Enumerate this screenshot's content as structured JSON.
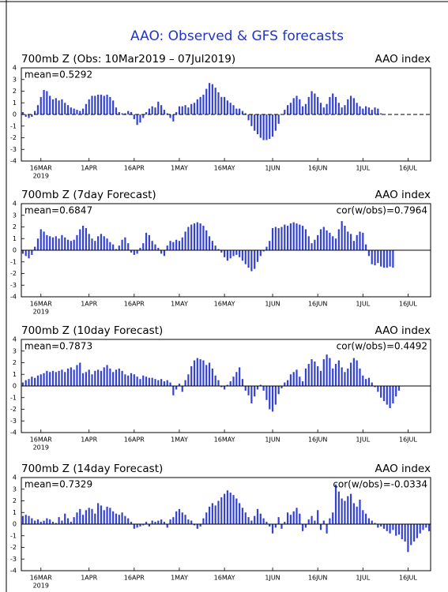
{
  "title": "AAO: Observed & GFS forecasts",
  "chart_data": [
    {
      "type": "bar",
      "title": "700mb Z (Obs: 10Mar2019 – 07Jul2019)",
      "index_label": "AAO index",
      "mean_label": "mean=0.5292",
      "year_label": "2019",
      "color": "#3342d0",
      "categories": [
        null,
        null,
        null,
        null,
        null,
        null,
        "16MAR",
        null,
        null,
        null,
        null,
        null,
        null,
        null,
        null,
        null,
        null,
        null,
        null,
        null,
        null,
        null,
        "1APR",
        null,
        null,
        null,
        null,
        null,
        null,
        null,
        null,
        null,
        null,
        null,
        null,
        null,
        null,
        "16APR",
        null,
        null,
        null,
        null,
        null,
        null,
        null,
        null,
        null,
        null,
        null,
        null,
        null,
        null,
        "1MAY",
        null,
        null,
        null,
        null,
        null,
        null,
        null,
        null,
        null,
        null,
        null,
        null,
        null,
        null,
        "16MAY",
        null,
        null,
        null,
        null,
        null,
        null,
        null,
        null,
        null,
        null,
        null,
        null,
        null,
        null,
        null,
        "1JUN",
        null,
        null,
        null,
        null,
        null,
        null,
        null,
        null,
        null,
        null,
        null,
        null,
        null,
        null,
        "16JUN",
        null,
        null,
        null,
        null,
        null,
        null,
        null,
        null,
        null,
        null,
        null,
        null,
        null,
        null,
        "1JUL",
        null,
        null,
        null,
        null,
        null,
        null,
        null,
        null,
        null,
        null,
        null,
        null,
        null,
        null,
        "16JUL",
        null,
        null,
        null,
        null,
        null,
        null,
        null
      ],
      "values": [
        0.2,
        -0.2,
        -0.3,
        -0.2,
        0.3,
        0.8,
        1.5,
        2.1,
        2.0,
        1.6,
        1.3,
        1.4,
        1.2,
        1.3,
        1.0,
        0.8,
        0.6,
        0.5,
        0.4,
        0.3,
        0.5,
        0.9,
        1.3,
        1.6,
        1.6,
        1.7,
        1.7,
        1.6,
        1.7,
        1.5,
        1.2,
        0.6,
        0.2,
        0.1,
        0.1,
        0.3,
        0.2,
        -0.4,
        -0.9,
        -0.7,
        -0.3,
        0.2,
        0.5,
        0.7,
        0.6,
        1.1,
        0.8,
        0.4,
        0.1,
        -0.3,
        -0.6,
        0.2,
        0.7,
        0.7,
        0.8,
        0.6,
        0.9,
        1.0,
        1.3,
        1.5,
        1.7,
        2.2,
        2.7,
        2.6,
        2.3,
        1.9,
        1.5,
        1.5,
        1.2,
        1.0,
        0.8,
        0.5,
        0.5,
        0.3,
        0.1,
        -0.5,
        -1.0,
        -1.4,
        -1.7,
        -2.0,
        -2.2,
        -2.2,
        -2.1,
        -1.9,
        -1.4,
        -0.8,
        0.0,
        0.4,
        0.8,
        1.0,
        1.4,
        1.6,
        1.3,
        0.7,
        0.9,
        1.5,
        2.0,
        1.8,
        1.5,
        1.0,
        0.6,
        0.9,
        1.5,
        1.8,
        1.5,
        1.0,
        0.6,
        0.8,
        1.3,
        1.6,
        1.4,
        1.0,
        0.7,
        0.5,
        0.7,
        0.6,
        0.4,
        0.6,
        0.5,
        0.1,
        null,
        null,
        null,
        null,
        null,
        null,
        null,
        null,
        null,
        null,
        null,
        null,
        null,
        null,
        null,
        null
      ],
      "ylim": [
        -4,
        4
      ],
      "yticks": [
        -4,
        -3,
        -2,
        -1,
        0,
        1,
        2,
        3,
        4
      ]
    },
    {
      "type": "bar",
      "title": "700mb Z (7day Forecast)",
      "index_label": "AAO index",
      "mean_label": "mean=0.6847",
      "cor_label": "cor(w/obs)=0.7964",
      "year_label": "2019",
      "color": "#3342d0",
      "categories": [
        null,
        null,
        null,
        null,
        null,
        null,
        "16MAR",
        null,
        null,
        null,
        null,
        null,
        null,
        null,
        null,
        null,
        null,
        null,
        null,
        null,
        null,
        null,
        "1APR",
        null,
        null,
        null,
        null,
        null,
        null,
        null,
        null,
        null,
        null,
        null,
        null,
        null,
        null,
        "16APR",
        null,
        null,
        null,
        null,
        null,
        null,
        null,
        null,
        null,
        null,
        null,
        null,
        null,
        null,
        "1MAY",
        null,
        null,
        null,
        null,
        null,
        null,
        null,
        null,
        null,
        null,
        null,
        null,
        null,
        null,
        "16MAY",
        null,
        null,
        null,
        null,
        null,
        null,
        null,
        null,
        null,
        null,
        null,
        null,
        null,
        null,
        null,
        "1JUN",
        null,
        null,
        null,
        null,
        null,
        null,
        null,
        null,
        null,
        null,
        null,
        null,
        null,
        null,
        "16JUN",
        null,
        null,
        null,
        null,
        null,
        null,
        null,
        null,
        null,
        null,
        null,
        null,
        null,
        null,
        "1JUL",
        null,
        null,
        null,
        null,
        null,
        null,
        null,
        null,
        null,
        null,
        null,
        null,
        null,
        null,
        "16JUL",
        null,
        null,
        null,
        null,
        null,
        null,
        null
      ],
      "values": [
        -0.3,
        -0.5,
        -0.7,
        -0.4,
        0.3,
        1.0,
        1.8,
        1.6,
        1.3,
        1.2,
        1.1,
        1.2,
        1.0,
        1.3,
        1.1,
        0.9,
        0.8,
        0.9,
        1.3,
        1.8,
        2.1,
        1.9,
        1.4,
        1.0,
        0.8,
        1.2,
        1.4,
        1.2,
        1.0,
        0.7,
        0.5,
        0.1,
        0.4,
        0.9,
        1.1,
        0.6,
        -0.2,
        -0.4,
        -0.3,
        0.2,
        0.6,
        1.5,
        1.3,
        0.8,
        0.5,
        0.2,
        -0.3,
        -0.5,
        0.4,
        0.8,
        0.7,
        0.9,
        0.8,
        1.1,
        1.6,
        2.0,
        2.2,
        2.3,
        2.4,
        2.3,
        2.1,
        1.7,
        1.2,
        0.8,
        0.4,
        0.1,
        -0.2,
        -0.6,
        -0.9,
        -0.7,
        -0.5,
        -0.4,
        -0.6,
        -0.9,
        -1.2,
        -1.5,
        -1.8,
        -1.6,
        -1.0,
        -0.5,
        -0.1,
        0.3,
        0.8,
        1.9,
        2.0,
        1.9,
        2.0,
        2.2,
        2.1,
        2.3,
        2.4,
        2.3,
        2.2,
        2.1,
        1.8,
        1.2,
        0.6,
        0.9,
        1.3,
        1.8,
        2.0,
        1.7,
        1.5,
        1.2,
        1.0,
        1.8,
        2.5,
        2.1,
        1.6,
        1.4,
        0.8,
        1.3,
        1.6,
        1.5,
        0.5,
        -0.5,
        -1.2,
        -1.3,
        -1.1,
        -1.4,
        -1.5,
        -1.5,
        -1.4,
        -1.5,
        null,
        null,
        null,
        null,
        null,
        null,
        null,
        null,
        null,
        null,
        null,
        null
      ],
      "ylim": [
        -4,
        4
      ],
      "yticks": [
        -4,
        -3,
        -2,
        -1,
        0,
        1,
        2,
        3,
        4
      ]
    },
    {
      "type": "bar",
      "title": "700mb Z (10day Forecast)",
      "index_label": "AAO index",
      "mean_label": "mean=0.7873",
      "cor_label": "cor(w/obs)=0.4492",
      "year_label": "2019",
      "color": "#3342d0",
      "categories": [
        null,
        null,
        null,
        null,
        null,
        null,
        "16MAR",
        null,
        null,
        null,
        null,
        null,
        null,
        null,
        null,
        null,
        null,
        null,
        null,
        null,
        null,
        null,
        "1APR",
        null,
        null,
        null,
        null,
        null,
        null,
        null,
        null,
        null,
        null,
        null,
        null,
        null,
        null,
        "16APR",
        null,
        null,
        null,
        null,
        null,
        null,
        null,
        null,
        null,
        null,
        null,
        null,
        null,
        null,
        "1MAY",
        null,
        null,
        null,
        null,
        null,
        null,
        null,
        null,
        null,
        null,
        null,
        null,
        null,
        null,
        "16MAY",
        null,
        null,
        null,
        null,
        null,
        null,
        null,
        null,
        null,
        null,
        null,
        null,
        null,
        null,
        null,
        "1JUN",
        null,
        null,
        null,
        null,
        null,
        null,
        null,
        null,
        null,
        null,
        null,
        null,
        null,
        null,
        "16JUN",
        null,
        null,
        null,
        null,
        null,
        null,
        null,
        null,
        null,
        null,
        null,
        null,
        null,
        null,
        "1JUL",
        null,
        null,
        null,
        null,
        null,
        null,
        null,
        null,
        null,
        null,
        null,
        null,
        null,
        null,
        "16JUL",
        null,
        null,
        null,
        null,
        null,
        null,
        null
      ],
      "values": [
        0.3,
        0.5,
        0.6,
        0.8,
        0.7,
        0.9,
        1.0,
        1.1,
        1.3,
        1.2,
        1.3,
        1.2,
        1.3,
        1.4,
        1.2,
        1.5,
        1.6,
        1.4,
        1.8,
        2.0,
        1.1,
        1.2,
        1.4,
        1.0,
        1.3,
        1.4,
        1.3,
        1.6,
        1.8,
        1.5,
        1.2,
        1.4,
        1.5,
        1.3,
        1.0,
        0.9,
        1.1,
        1.0,
        0.8,
        0.6,
        0.9,
        0.8,
        0.7,
        0.7,
        0.6,
        0.5,
        0.6,
        0.4,
        0.5,
        0.3,
        -0.8,
        -0.3,
        0.2,
        -0.5,
        0.5,
        1.0,
        1.7,
        2.2,
        2.4,
        2.3,
        2.2,
        1.8,
        2.0,
        1.5,
        0.9,
        0.5,
        -0.1,
        -0.3,
        0.1,
        0.4,
        0.8,
        1.2,
        1.6,
        0.6,
        -0.4,
        -0.8,
        -1.5,
        -0.9,
        -0.3,
        0.1,
        -0.4,
        -1.2,
        -2.0,
        -2.2,
        -1.6,
        -0.7,
        -0.2,
        0.3,
        0.5,
        1.0,
        1.2,
        1.4,
        0.8,
        0.4,
        1.5,
        1.9,
        2.3,
        2.1,
        1.7,
        1.3,
        2.3,
        2.7,
        2.4,
        1.5,
        1.9,
        2.2,
        1.6,
        1.2,
        1.5,
        2.0,
        2.4,
        2.2,
        1.5,
        0.9,
        0.6,
        0.7,
        0.3,
        -0.1,
        -0.5,
        -1.0,
        -1.3,
        -1.6,
        -1.9,
        -1.5,
        -0.9,
        -0.4,
        null,
        null,
        null,
        null,
        null,
        null,
        null,
        null,
        null,
        null
      ],
      "ylim": [
        -4,
        4
      ],
      "yticks": [
        -4,
        -3,
        -2,
        -1,
        0,
        1,
        2,
        3,
        4
      ]
    },
    {
      "type": "bar",
      "title": "700mb Z (14day Forecast)",
      "index_label": "AAO index",
      "mean_label": "mean=0.7329",
      "cor_label": "cor(w/obs)=-0.0334",
      "year_label": "2019",
      "color": "#3342d0",
      "categories": [
        null,
        null,
        null,
        null,
        null,
        null,
        "16MAR",
        null,
        null,
        null,
        null,
        null,
        null,
        null,
        null,
        null,
        null,
        null,
        null,
        null,
        null,
        null,
        "1APR",
        null,
        null,
        null,
        null,
        null,
        null,
        null,
        null,
        null,
        null,
        null,
        null,
        null,
        null,
        "16APR",
        null,
        null,
        null,
        null,
        null,
        null,
        null,
        null,
        null,
        null,
        null,
        null,
        null,
        null,
        "1MAY",
        null,
        null,
        null,
        null,
        null,
        null,
        null,
        null,
        null,
        null,
        null,
        null,
        null,
        null,
        "16MAY",
        null,
        null,
        null,
        null,
        null,
        null,
        null,
        null,
        null,
        null,
        null,
        null,
        null,
        null,
        null,
        "1JUN",
        null,
        null,
        null,
        null,
        null,
        null,
        null,
        null,
        null,
        null,
        null,
        null,
        null,
        null,
        "16JUN",
        null,
        null,
        null,
        null,
        null,
        null,
        null,
        null,
        null,
        null,
        null,
        null,
        null,
        null,
        "1JUL",
        null,
        null,
        null,
        null,
        null,
        null,
        null,
        null,
        null,
        null,
        null,
        null,
        null,
        null,
        "16JUL",
        null,
        null,
        null,
        null,
        null,
        null,
        null
      ],
      "values": [
        0.7,
        0.8,
        0.7,
        0.5,
        0.3,
        0.4,
        0.2,
        0.3,
        0.5,
        0.4,
        0.2,
        0.1,
        0.6,
        0.3,
        0.9,
        0.5,
        0.2,
        0.6,
        1.0,
        1.3,
        0.8,
        1.2,
        1.4,
        1.3,
        0.9,
        1.8,
        1.6,
        1.2,
        1.5,
        1.4,
        1.1,
        0.9,
        0.8,
        1.0,
        0.7,
        0.5,
        0.2,
        -0.4,
        -0.3,
        -0.2,
        -0.1,
        0.2,
        -0.2,
        0.3,
        0.2,
        0.3,
        0.4,
        0.2,
        -0.3,
        0.4,
        0.6,
        1.1,
        1.3,
        1.0,
        0.8,
        0.4,
        0.3,
        -0.1,
        -0.4,
        -0.2,
        0.5,
        1.0,
        1.5,
        1.8,
        1.6,
        2.0,
        2.3,
        2.6,
        2.9,
        2.7,
        2.5,
        2.2,
        1.8,
        1.4,
        1.0,
        0.6,
        0.3,
        0.7,
        1.3,
        0.9,
        0.5,
        0.2,
        -0.2,
        -0.8,
        -0.3,
        0.6,
        -0.4,
        0.2,
        1.0,
        0.8,
        1.1,
        1.4,
        0.9,
        -0.6,
        -0.3,
        0.4,
        0.7,
        0.3,
        1.2,
        -0.5,
        0.3,
        -0.8,
        0.5,
        1.0,
        3.4,
        2.8,
        2.2,
        2.0,
        2.4,
        2.6,
        1.8,
        1.5,
        2.1,
        1.2,
        0.9,
        0.5,
        0.3,
        0.1,
        -0.3,
        -0.2,
        -0.4,
        -0.6,
        -0.8,
        -0.5,
        -1.0,
        -0.9,
        -1.3,
        -1.5,
        -2.4,
        -1.8,
        -1.5,
        -1.2,
        -0.8,
        -0.5,
        -0.3,
        -0.6
      ],
      "ylim": [
        -4,
        4
      ],
      "yticks": [
        -4,
        -3,
        -2,
        -1,
        0,
        1,
        2,
        3,
        4
      ]
    }
  ]
}
